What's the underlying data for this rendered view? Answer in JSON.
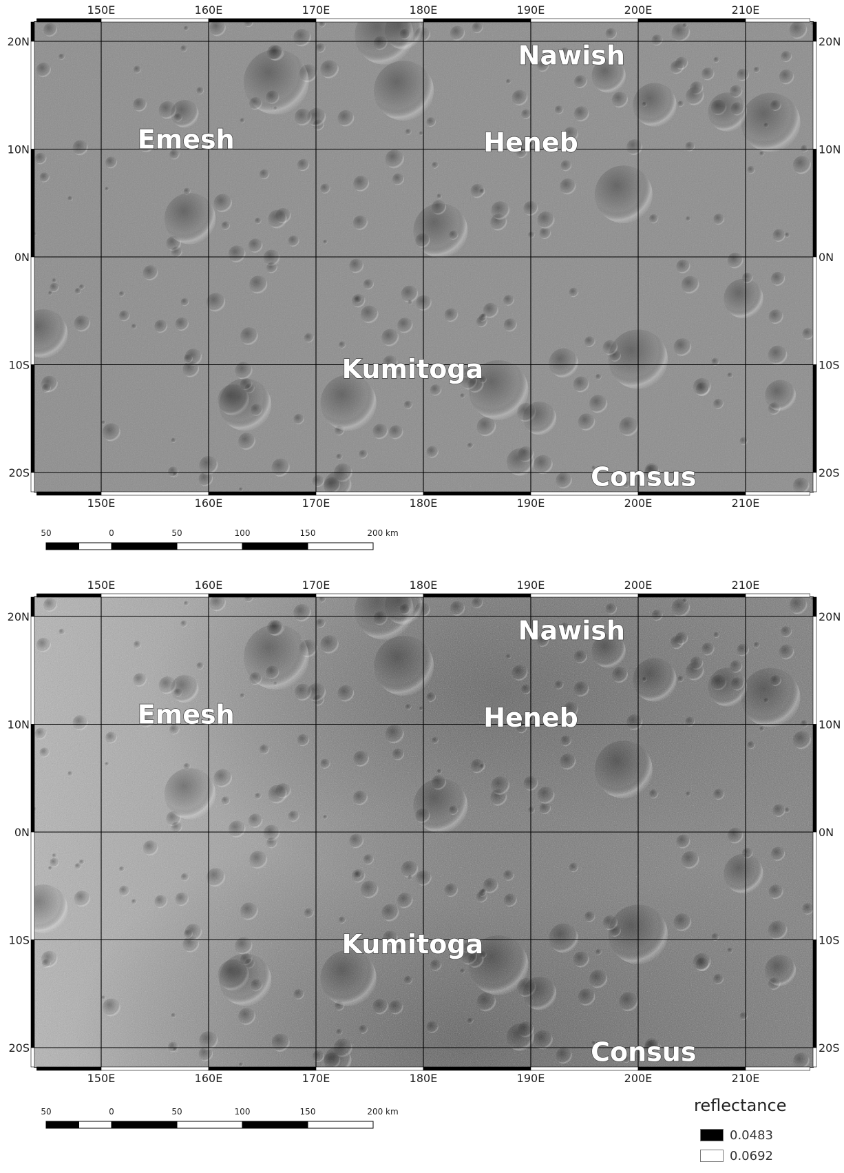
{
  "panels": [
    {
      "id": "top",
      "lon_ticks": [
        "150E",
        "160E",
        "170E",
        "180E",
        "190E",
        "200E",
        "210E"
      ],
      "lat_ticks": [
        "20N",
        "10N",
        "0N",
        "10S",
        "20S"
      ],
      "features": [
        {
          "name": "Nawish",
          "lon": 193.8,
          "lat": 18.7
        },
        {
          "name": "Emesh",
          "lon": 157.9,
          "lat": 10.9
        },
        {
          "name": "Heneb",
          "lon": 190.0,
          "lat": 10.6
        },
        {
          "name": "Kumitoga",
          "lon": 179.0,
          "lat": -10.4
        },
        {
          "name": "Consus",
          "lon": 200.5,
          "lat": -20.4
        }
      ],
      "scale_labels": [
        "50",
        "0",
        "50",
        "100",
        "150",
        "200 km"
      ]
    },
    {
      "id": "bottom",
      "lon_ticks": [
        "150E",
        "160E",
        "170E",
        "180E",
        "190E",
        "200E",
        "210E"
      ],
      "lat_ticks": [
        "20N",
        "10N",
        "0N",
        "10S",
        "20S"
      ],
      "features": [
        {
          "name": "Nawish",
          "lon": 193.8,
          "lat": 18.7
        },
        {
          "name": "Emesh",
          "lon": 157.9,
          "lat": 10.9
        },
        {
          "name": "Heneb",
          "lon": 190.0,
          "lat": 10.6
        },
        {
          "name": "Kumitoga",
          "lon": 179.0,
          "lat": -10.4
        },
        {
          "name": "Consus",
          "lon": 200.5,
          "lat": -20.4
        }
      ],
      "scale_labels": [
        "50",
        "0",
        "50",
        "100",
        "150",
        "200 km"
      ]
    }
  ],
  "legend": {
    "title": "reflectance",
    "entries": [
      {
        "label": "0.0483",
        "color": "#000000"
      },
      {
        "label": "0.0692",
        "color": "#ffffff"
      }
    ]
  },
  "colors": {
    "surface_top": "#8c8c8c",
    "surface_bottom_light": "#b4b4b4",
    "surface_bottom_dark": "#5a5a5a",
    "grid": "#000000",
    "label_fill": "#ffffff",
    "label_stroke": "#444444"
  }
}
